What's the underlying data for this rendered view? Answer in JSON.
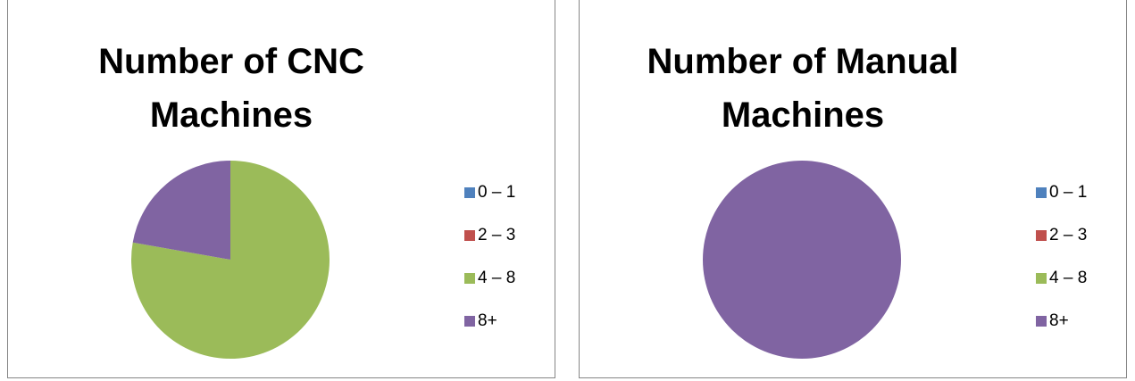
{
  "chart_data": [
    {
      "type": "pie",
      "title": "Number of CNC Machines",
      "categories": [
        "0 – 1",
        "2 – 3",
        "4 – 8",
        "8+"
      ],
      "series": [
        {
          "name": "Number of CNC Machines",
          "values": [
            0,
            0,
            7,
            2
          ]
        }
      ],
      "colors": [
        "#4f81bd",
        "#c0504d",
        "#9bbb59",
        "#8064a2"
      ],
      "legend": "right"
    },
    {
      "type": "pie",
      "title": "Number of Manual Machines",
      "categories": [
        "0 – 1",
        "2 – 3",
        "4 – 8",
        "8+"
      ],
      "series": [
        {
          "name": "Number of Manual Machines",
          "values": [
            0,
            0,
            0,
            9
          ]
        }
      ],
      "colors": [
        "#4f81bd",
        "#c0504d",
        "#9bbb59",
        "#8064a2"
      ],
      "legend": "right"
    }
  ]
}
